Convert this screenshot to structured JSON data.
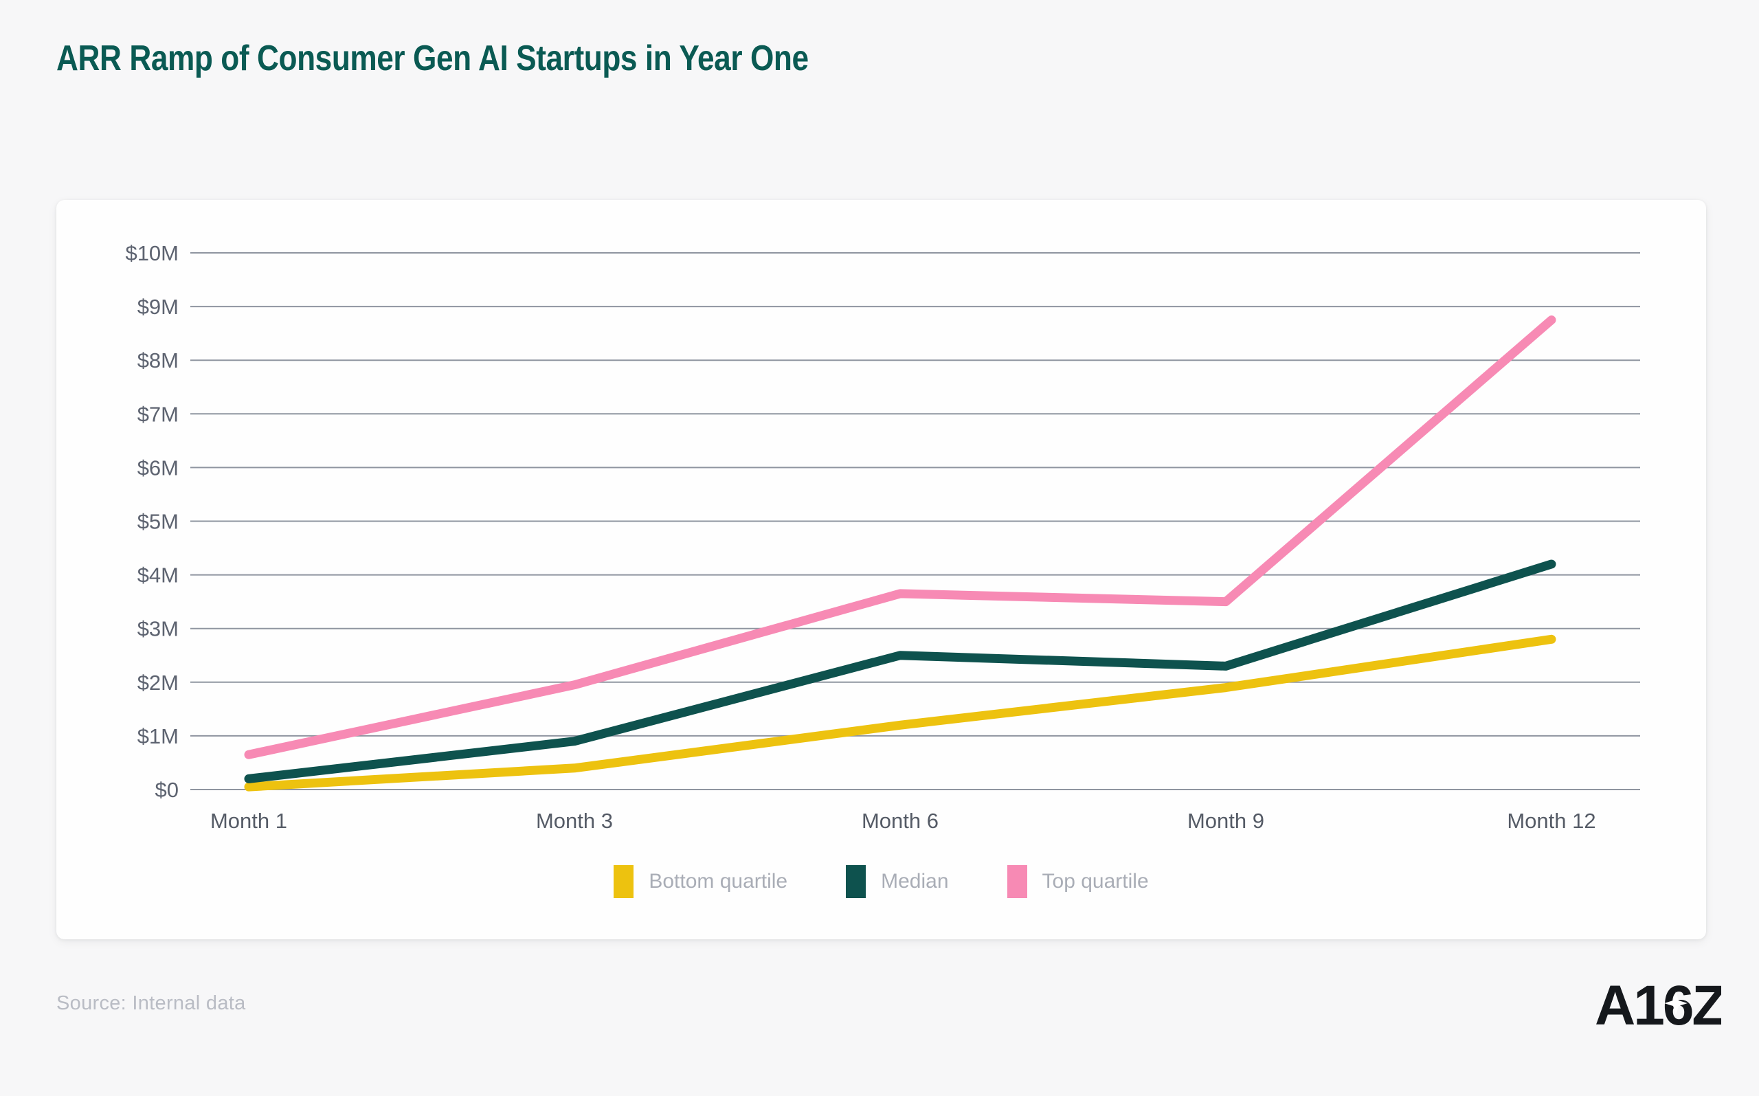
{
  "header": {
    "title": "ARR Ramp of Consumer Gen AI Startups in Year One"
  },
  "footer": {
    "source": "Source: Internal data",
    "logo_text": "A16Z"
  },
  "chart_data": {
    "type": "line",
    "title": "ARR Ramp of Consumer Gen AI Startups in Year One",
    "xlabel": "",
    "ylabel": "ARR (USD)",
    "y_unit": "millions of dollars",
    "ylim": [
      0,
      10
    ],
    "grid": "horizontal",
    "legend_position": "bottom",
    "categories": [
      "Month 1",
      "Month 3",
      "Month 6",
      "Month 9",
      "Month 12"
    ],
    "y_ticks": {
      "labels": [
        "$0",
        "$1M",
        "$2M",
        "$3M",
        "$4M",
        "$5M",
        "$6M",
        "$7M",
        "$8M",
        "$9M",
        "$10M"
      ],
      "values": [
        0,
        1,
        2,
        3,
        4,
        5,
        6,
        7,
        8,
        9,
        10
      ]
    },
    "series": [
      {
        "id": "bottom-quartile",
        "name": "Bottom quartile",
        "color": "#EDC20F",
        "values": [
          0.05,
          0.4,
          1.2,
          1.9,
          2.8
        ]
      },
      {
        "id": "median",
        "name": "Median",
        "color": "#0E524E",
        "values": [
          0.2,
          0.9,
          2.5,
          2.3,
          4.2
        ]
      },
      {
        "id": "top-quartile",
        "name": "Top quartile",
        "color": "#F78AB4",
        "values": [
          0.65,
          1.95,
          3.65,
          3.5,
          8.75
        ]
      }
    ],
    "style": {
      "grid_color": "#8f95a0",
      "y_tick_color": "#5d6370",
      "x_tick_color": "#555b66",
      "line_width": 13
    }
  }
}
